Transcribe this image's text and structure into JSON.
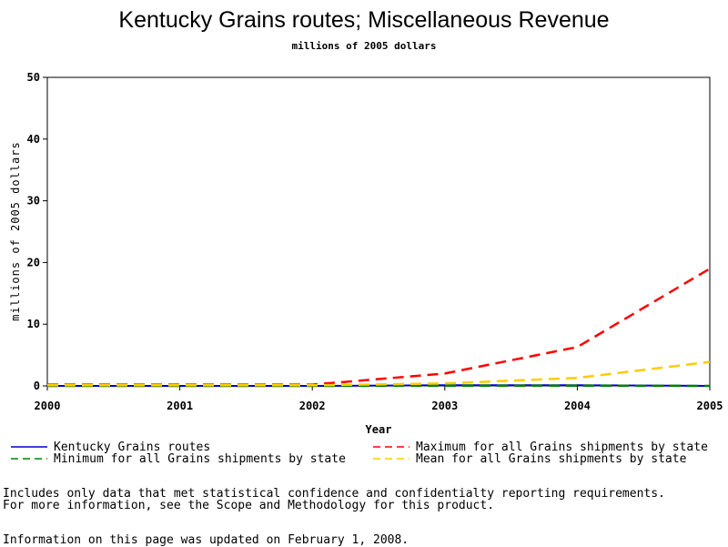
{
  "chart_data": {
    "type": "line",
    "title": "Kentucky Grains routes; Miscellaneous Revenue",
    "subtitle": "millions of 2005 dollars",
    "xlabel": "Year",
    "ylabel": "millions of 2005 dollars",
    "xlim": [
      2000,
      2005
    ],
    "ylim": [
      0,
      50
    ],
    "x_ticks": [
      2000,
      2001,
      2002,
      2003,
      2004,
      2005
    ],
    "y_ticks": [
      0,
      10,
      20,
      30,
      40,
      50
    ],
    "grid": false,
    "legend_position": "bottom",
    "series": [
      {
        "name": "Kentucky Grains routes",
        "color": "#0000cc",
        "style": "solid",
        "x": [
          2000,
          2001,
          2002,
          2003,
          2004,
          2005
        ],
        "values": [
          0.0,
          0.0,
          0.0,
          0.1,
          0.1,
          0.0
        ]
      },
      {
        "name": "Minimum for all Grains shipments by state",
        "color": "#008000",
        "style": "dashed",
        "x": [
          2000,
          2001,
          2002,
          2003,
          2004,
          2005
        ],
        "values": [
          0.0,
          0.0,
          0.0,
          0.05,
          0.05,
          0.0
        ]
      },
      {
        "name": "Maximum for all Grains shipments by state",
        "color": "#ff0000",
        "style": "dashed",
        "x": [
          2000,
          2001,
          2002,
          2003,
          2004,
          2005
        ],
        "values": [
          0.2,
          0.2,
          0.2,
          2.0,
          6.3,
          19.0
        ]
      },
      {
        "name": "Mean for all Grains shipments by state",
        "color": "#ffcc00",
        "style": "dashed",
        "x": [
          2000,
          2001,
          2002,
          2003,
          2004,
          2005
        ],
        "values": [
          0.1,
          0.1,
          0.1,
          0.4,
          1.3,
          3.9
        ]
      }
    ]
  },
  "notes": {
    "line1": "Includes only data that met statistical confidence and confidentialty reporting requirements.",
    "line2": "For more information, see the Scope and Methodology for this product.",
    "updated": "Information on this page was updated on February 1, 2008."
  }
}
